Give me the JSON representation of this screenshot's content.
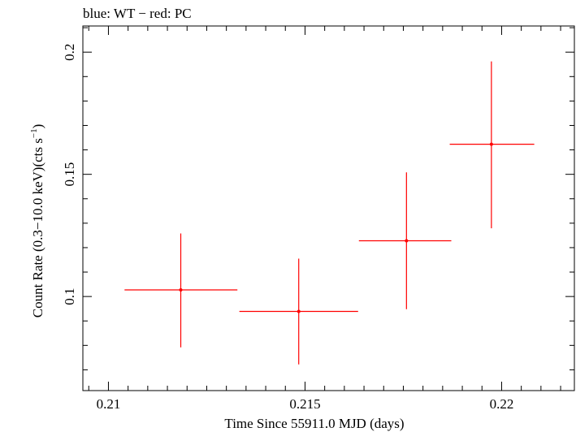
{
  "chart_data": {
    "type": "scatter",
    "title": "blue: WT − red: PC",
    "xlabel": "Time Since 55911.0 MJD (days)",
    "ylabel_main": "Count Rate (0.3−10.0 keV)(cts s",
    "ylabel_sup": "−1",
    "ylabel_close": ")",
    "xlim": [
      0.20935,
      0.22185
    ],
    "ylim": [
      0.0615,
      0.2107
    ],
    "x_ticks": [
      {
        "value": 0.21,
        "label": "0.21"
      },
      {
        "value": 0.215,
        "label": "0.215"
      },
      {
        "value": 0.22,
        "label": "0.22"
      }
    ],
    "y_ticks": [
      {
        "value": 0.1,
        "label": "0.1"
      },
      {
        "value": 0.15,
        "label": "0.15"
      },
      {
        "value": 0.2,
        "label": "0.2"
      }
    ],
    "grid": false,
    "series": [
      {
        "name": "PC",
        "color": "#ff0000",
        "points": [
          {
            "x": 0.21184,
            "xlo": 0.21041,
            "xhi": 0.21328,
            "y": 0.1027,
            "ylo": 0.0792,
            "yhi": 0.1258
          },
          {
            "x": 0.21484,
            "xlo": 0.21333,
            "xhi": 0.21635,
            "y": 0.0939,
            "ylo": 0.0722,
            "yhi": 0.1155
          },
          {
            "x": 0.21758,
            "xlo": 0.21637,
            "xhi": 0.21872,
            "y": 0.1228,
            "ylo": 0.0948,
            "yhi": 0.1508
          },
          {
            "x": 0.21974,
            "xlo": 0.21868,
            "xhi": 0.22083,
            "y": 0.1623,
            "ylo": 0.1279,
            "yhi": 0.1962
          }
        ]
      }
    ]
  }
}
